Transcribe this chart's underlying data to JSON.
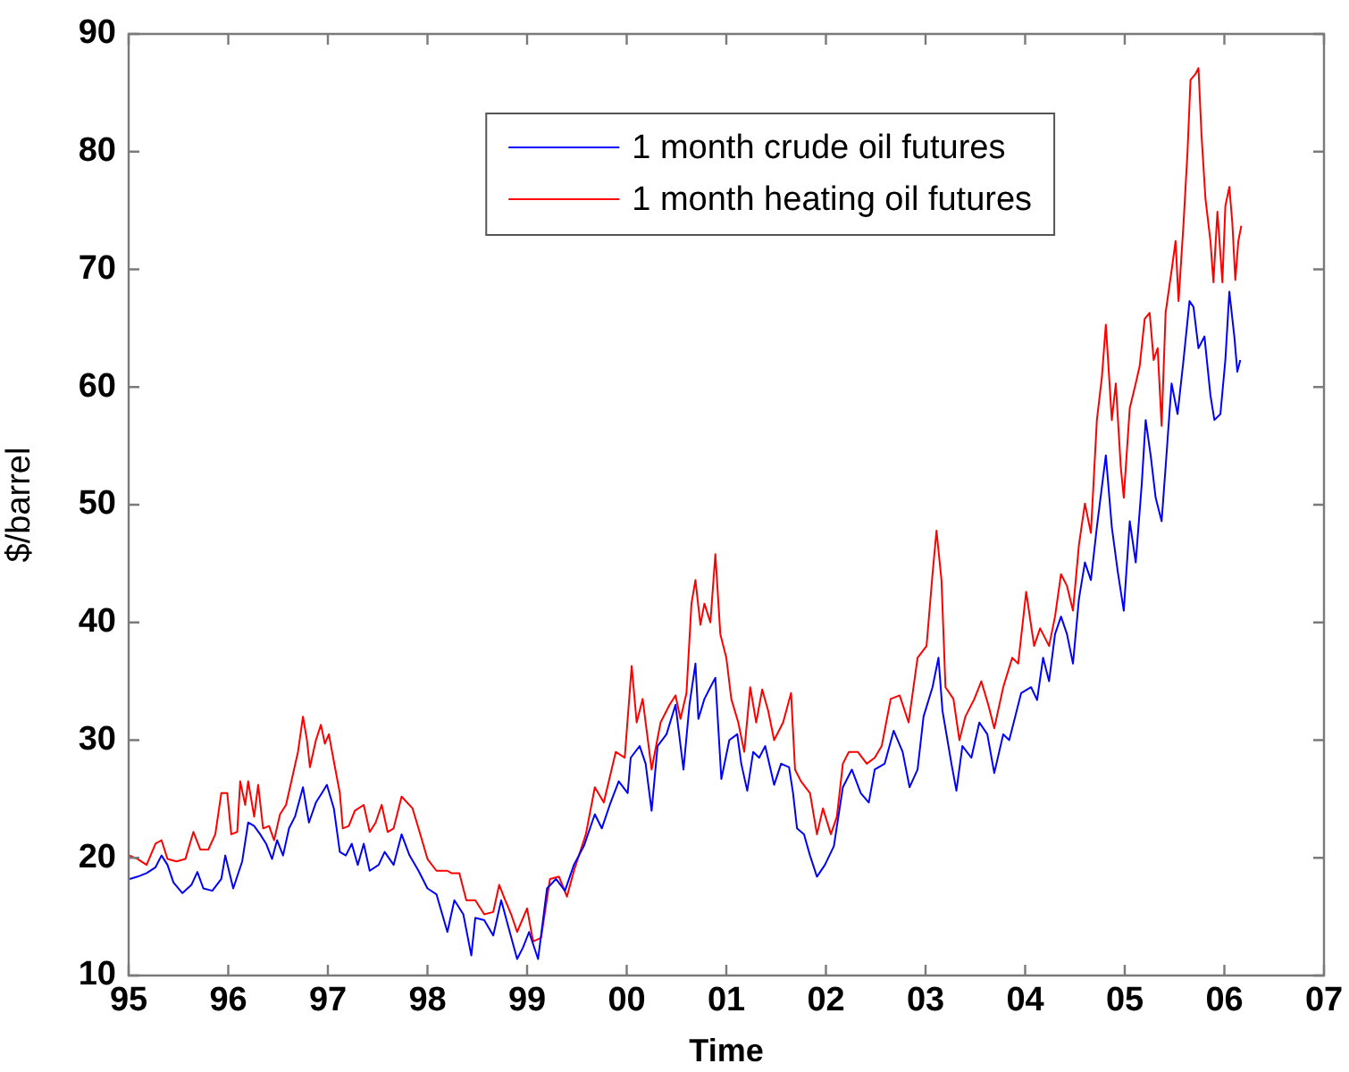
{
  "chart_data": {
    "type": "line",
    "xlabel": "Time",
    "ylabel": "$/barrel",
    "xlim": [
      1995,
      2007
    ],
    "xticks": [
      {
        "value": 1995,
        "label": "95"
      },
      {
        "value": 1996,
        "label": "96"
      },
      {
        "value": 1997,
        "label": "97"
      },
      {
        "value": 1998,
        "label": "98"
      },
      {
        "value": 1999,
        "label": "99"
      },
      {
        "value": 2000,
        "label": "00"
      },
      {
        "value": 2001,
        "label": "01"
      },
      {
        "value": 2002,
        "label": "02"
      },
      {
        "value": 2003,
        "label": "03"
      },
      {
        "value": 2004,
        "label": "04"
      },
      {
        "value": 2005,
        "label": "05"
      },
      {
        "value": 2006,
        "label": "06"
      },
      {
        "value": 2007,
        "label": "07"
      }
    ],
    "ylim": [
      10,
      90
    ],
    "yticks": [
      10,
      20,
      30,
      40,
      50,
      60,
      70,
      80,
      90
    ],
    "grid": false,
    "legend": "top",
    "marker": "none",
    "series": [
      {
        "name": "1 month crude oil futures",
        "color": "#0000ff",
        "x": [
          1995.01,
          1995.09,
          1995.18,
          1995.27,
          1995.33,
          1995.39,
          1995.45,
          1995.54,
          1995.63,
          1995.69,
          1995.75,
          1995.84,
          1995.93,
          1995.97,
          1996.05,
          1996.14,
          1996.2,
          1996.26,
          1996.32,
          1996.38,
          1996.44,
          1996.49,
          1996.55,
          1996.61,
          1996.67,
          1996.75,
          1996.81,
          1996.88,
          1996.94,
          1996.99,
          1997.06,
          1997.12,
          1997.18,
          1997.24,
          1997.3,
          1997.36,
          1997.42,
          1997.51,
          1997.57,
          1997.66,
          1997.74,
          1997.82,
          1997.91,
          1998.0,
          1998.09,
          1998.2,
          1998.27,
          1998.36,
          1998.44,
          1998.48,
          1998.57,
          1998.66,
          1998.74,
          1998.81,
          1998.9,
          1998.96,
          1999.02,
          1999.11,
          1999.2,
          1999.29,
          1999.38,
          1999.47,
          1999.57,
          1999.68,
          1999.75,
          1999.83,
          1999.92,
          2000.01,
          2000.04,
          2000.13,
          2000.19,
          2000.25,
          2000.31,
          2000.4,
          2000.49,
          2000.57,
          2000.63,
          2000.69,
          2000.72,
          2000.78,
          2000.84,
          2000.89,
          2000.95,
          2001.03,
          2001.11,
          2001.15,
          2001.21,
          2001.27,
          2001.33,
          2001.39,
          2001.48,
          2001.55,
          2001.63,
          2001.67,
          2001.71,
          2001.78,
          2001.84,
          2001.91,
          2001.99,
          2002.08,
          2002.17,
          2002.26,
          2002.35,
          2002.43,
          2002.49,
          2002.59,
          2002.68,
          2002.77,
          2002.84,
          2002.92,
          2002.98,
          2003.07,
          2003.13,
          2003.17,
          2003.22,
          2003.26,
          2003.31,
          2003.37,
          2003.46,
          2003.54,
          2003.62,
          2003.69,
          2003.78,
          2003.84,
          2003.9,
          2003.96,
          2004.06,
          2004.12,
          2004.18,
          2004.24,
          2004.3,
          2004.36,
          2004.42,
          2004.48,
          2004.54,
          2004.6,
          2004.66,
          2004.72,
          2004.81,
          2004.87,
          2004.93,
          2004.99,
          2005.05,
          2005.11,
          2005.17,
          2005.21,
          2005.26,
          2005.31,
          2005.37,
          2005.41,
          2005.47,
          2005.53,
          2005.59,
          2005.65,
          2005.69,
          2005.74,
          2005.8,
          2005.86,
          2005.9,
          2005.96,
          2006.01,
          2006.05,
          2006.1,
          2006.13,
          2006.16
        ],
        "values": [
          18.2,
          18.4,
          18.7,
          19.2,
          20.2,
          19.4,
          17.9,
          17.0,
          17.7,
          18.8,
          17.4,
          17.2,
          18.2,
          20.2,
          17.4,
          19.7,
          23.0,
          22.7,
          22.0,
          21.2,
          19.9,
          21.5,
          20.2,
          22.5,
          23.5,
          26.0,
          23.0,
          24.7,
          25.5,
          26.2,
          24.2,
          20.5,
          20.2,
          21.2,
          19.4,
          21.2,
          18.9,
          19.4,
          20.5,
          19.4,
          22.0,
          20.2,
          18.9,
          17.4,
          16.9,
          13.7,
          16.4,
          15.2,
          11.7,
          14.9,
          14.7,
          13.4,
          16.4,
          14.2,
          11.4,
          12.4,
          13.7,
          11.4,
          17.4,
          18.2,
          17.2,
          19.4,
          21.0,
          23.7,
          22.5,
          24.5,
          26.5,
          25.5,
          28.5,
          29.5,
          28.0,
          24.0,
          29.5,
          30.5,
          33.0,
          27.5,
          33.0,
          36.5,
          31.8,
          33.5,
          34.5,
          35.3,
          26.7,
          30.0,
          30.5,
          28.0,
          25.7,
          29.0,
          28.5,
          29.5,
          26.2,
          28.0,
          27.7,
          25.5,
          22.5,
          22.0,
          20.2,
          18.4,
          19.4,
          21.0,
          26.0,
          27.5,
          25.5,
          24.7,
          27.5,
          28.0,
          30.8,
          29.0,
          26.0,
          27.5,
          32.0,
          34.5,
          37.0,
          32.5,
          30.0,
          28.0,
          25.7,
          29.5,
          28.5,
          31.5,
          30.5,
          27.2,
          30.5,
          30.0,
          32.0,
          34.0,
          34.5,
          33.4,
          37.0,
          35.0,
          39.0,
          40.5,
          39.0,
          36.5,
          42.0,
          45.1,
          43.6,
          48.1,
          54.2,
          48.1,
          44.3,
          41.0,
          48.6,
          45.1,
          51.7,
          57.2,
          54.2,
          50.6,
          48.6,
          53.2,
          60.3,
          57.7,
          62.3,
          67.3,
          66.8,
          63.3,
          64.3,
          59.3,
          57.2,
          57.7,
          62.3,
          68.1,
          64.3,
          61.3,
          62.3
        ]
      },
      {
        "name": "1 month heating oil futures",
        "color": "#ff0000",
        "x": [
          1995.01,
          1995.09,
          1995.18,
          1995.27,
          1995.33,
          1995.39,
          1995.48,
          1995.57,
          1995.65,
          1995.72,
          1995.8,
          1995.87,
          1995.93,
          1995.99,
          1996.03,
          1996.09,
          1996.12,
          1996.17,
          1996.2,
          1996.26,
          1996.3,
          1996.35,
          1996.41,
          1996.46,
          1996.52,
          1996.58,
          1996.66,
          1996.7,
          1996.75,
          1996.79,
          1996.82,
          1996.88,
          1996.93,
          1996.97,
          1997.01,
          1997.06,
          1997.12,
          1997.15,
          1997.21,
          1997.27,
          1997.36,
          1997.42,
          1997.48,
          1997.54,
          1997.6,
          1997.66,
          1997.74,
          1997.85,
          1997.91,
          1998.0,
          1998.09,
          1998.2,
          1998.24,
          1998.32,
          1998.39,
          1998.48,
          1998.57,
          1998.66,
          1998.72,
          1998.78,
          1998.84,
          1998.9,
          1999.0,
          1999.06,
          1999.14,
          1999.23,
          1999.32,
          1999.4,
          1999.47,
          1999.59,
          1999.68,
          1999.77,
          1999.89,
          1999.98,
          2000.05,
          2000.1,
          2000.16,
          2000.25,
          2000.34,
          2000.43,
          2000.49,
          2000.54,
          2000.6,
          2000.65,
          2000.69,
          2000.74,
          2000.78,
          2000.84,
          2000.89,
          2000.94,
          2001.0,
          2001.05,
          2001.12,
          2001.18,
          2001.24,
          2001.3,
          2001.36,
          2001.42,
          2001.48,
          2001.57,
          2001.65,
          2001.69,
          2001.75,
          2001.84,
          2001.91,
          2001.97,
          2002.05,
          2002.11,
          2002.17,
          2002.23,
          2002.32,
          2002.41,
          2002.49,
          2002.56,
          2002.65,
          2002.74,
          2002.83,
          2002.92,
          2003.01,
          2003.07,
          2003.11,
          2003.16,
          2003.2,
          2003.28,
          2003.34,
          2003.4,
          2003.49,
          2003.56,
          2003.63,
          2003.69,
          2003.78,
          2003.87,
          2003.93,
          2004.01,
          2004.09,
          2004.15,
          2004.24,
          2004.3,
          2004.36,
          2004.42,
          2004.48,
          2004.54,
          2004.6,
          2004.66,
          2004.72,
          2004.77,
          2004.81,
          2004.87,
          2004.91,
          2004.96,
          2004.99,
          2005.05,
          2005.11,
          2005.15,
          2005.2,
          2005.25,
          2005.29,
          2005.33,
          2005.37,
          2005.41,
          2005.47,
          2005.51,
          2005.54,
          2005.59,
          2005.63,
          2005.66,
          2005.71,
          2005.74,
          2005.77,
          2005.81,
          2005.86,
          2005.89,
          2005.93,
          2005.98,
          2006.01,
          2006.05,
          2006.08,
          2006.11,
          2006.14,
          2006.17
        ],
        "values": [
          20.2,
          19.9,
          19.4,
          21.2,
          21.5,
          19.9,
          19.7,
          19.9,
          22.2,
          20.7,
          20.7,
          22.0,
          25.5,
          25.5,
          22.0,
          22.2,
          26.5,
          24.5,
          26.5,
          23.5,
          26.2,
          22.5,
          22.7,
          21.5,
          23.7,
          24.5,
          27.5,
          29.0,
          32.0,
          30.0,
          27.7,
          30.0,
          31.3,
          29.7,
          30.5,
          28.2,
          25.5,
          22.5,
          22.7,
          24.0,
          24.5,
          22.2,
          23.0,
          24.5,
          22.2,
          22.5,
          25.2,
          24.2,
          22.5,
          19.9,
          18.9,
          18.9,
          18.7,
          18.7,
          16.4,
          16.4,
          15.2,
          15.4,
          17.7,
          16.4,
          15.2,
          13.7,
          15.7,
          12.9,
          13.2,
          18.2,
          18.4,
          16.7,
          18.9,
          22.0,
          26.0,
          24.7,
          29.0,
          28.5,
          36.3,
          31.5,
          33.5,
          27.5,
          31.5,
          33.0,
          33.8,
          31.8,
          34.0,
          41.6,
          43.6,
          39.8,
          41.6,
          40.0,
          45.8,
          39.0,
          37.0,
          33.5,
          31.5,
          29.0,
          34.5,
          31.5,
          34.3,
          32.5,
          30.0,
          31.5,
          34.0,
          27.5,
          26.5,
          25.5,
          22.0,
          24.2,
          22.0,
          23.5,
          28.0,
          29.0,
          29.0,
          28.0,
          28.5,
          29.5,
          33.5,
          33.8,
          31.5,
          37.0,
          38.0,
          44.1,
          47.8,
          43.6,
          34.5,
          33.5,
          30.0,
          32.0,
          33.5,
          35.0,
          33.0,
          31.0,
          34.5,
          37.0,
          36.5,
          42.6,
          38.0,
          39.5,
          38.0,
          40.5,
          44.1,
          43.1,
          41.0,
          46.6,
          50.1,
          47.6,
          57.2,
          60.8,
          65.3,
          57.2,
          60.3,
          53.2,
          50.6,
          58.2,
          60.3,
          61.8,
          65.8,
          66.3,
          62.3,
          63.3,
          56.7,
          66.3,
          69.9,
          72.4,
          67.3,
          73.9,
          80.0,
          86.1,
          86.6,
          87.1,
          81.5,
          76.0,
          72.4,
          68.9,
          74.9,
          68.9,
          75.4,
          77.0,
          73.9,
          69.1,
          72.4,
          73.7
        ]
      }
    ]
  }
}
